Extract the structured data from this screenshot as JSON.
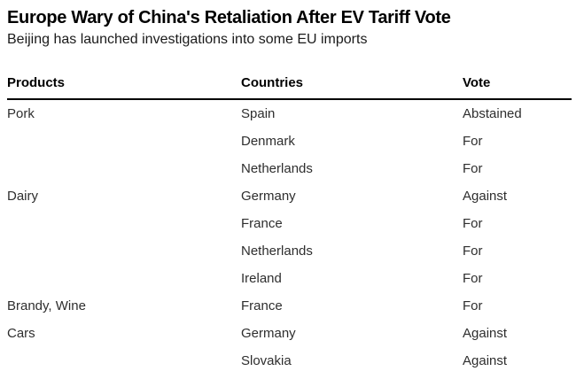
{
  "header": {
    "title": "Europe Wary of China's Retaliation After EV Tariff Vote",
    "subtitle": "Beijing has launched investigations into some EU imports"
  },
  "colors": {
    "background": "#ffffff",
    "title_text": "#000000",
    "row_text": "#2e2e2e",
    "header_rule": "#000000"
  },
  "chart_data": {
    "type": "table",
    "columns": [
      "Products",
      "Countries",
      "Vote"
    ],
    "rows": [
      {
        "product": "Pork",
        "country": "Spain",
        "vote": "Abstained"
      },
      {
        "product": "",
        "country": "Denmark",
        "vote": "For"
      },
      {
        "product": "",
        "country": "Netherlands",
        "vote": "For"
      },
      {
        "product": "Dairy",
        "country": "Germany",
        "vote": "Against"
      },
      {
        "product": "",
        "country": "France",
        "vote": "For"
      },
      {
        "product": "",
        "country": "Netherlands",
        "vote": "For"
      },
      {
        "product": "",
        "country": "Ireland",
        "vote": "For"
      },
      {
        "product": "Brandy, Wine",
        "country": "France",
        "vote": "For"
      },
      {
        "product": "Cars",
        "country": "Germany",
        "vote": "Against"
      },
      {
        "product": "",
        "country": "Slovakia",
        "vote": "Against"
      }
    ]
  }
}
